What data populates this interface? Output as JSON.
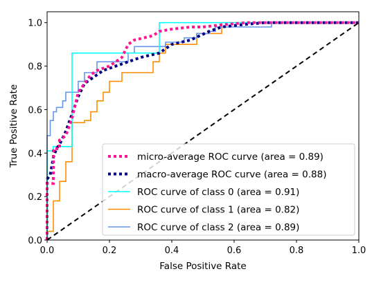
{
  "chart_data": {
    "type": "line",
    "title": "",
    "xlabel": "False Positive Rate",
    "ylabel": "True Positive Rate",
    "xlim": [
      0.0,
      1.0
    ],
    "ylim": [
      0.0,
      1.05
    ],
    "xticks": [
      "0.0",
      "0.2",
      "0.4",
      "0.6",
      "0.8",
      "1.0"
    ],
    "yticks": [
      "0.0",
      "0.2",
      "0.4",
      "0.6",
      "0.8",
      "1.0"
    ],
    "grid": false,
    "legend_position": "lower-right",
    "series": [
      {
        "name": "micro-average ROC curve (area = 0.89)",
        "style": "dotted",
        "color": "#ff1493",
        "x": [
          0,
          0,
          0.02,
          0.02,
          0.04,
          0.04,
          0.06,
          0.07,
          0.08,
          0.09,
          0.1,
          0.12,
          0.14,
          0.16,
          0.2,
          0.24,
          0.26,
          0.28,
          0.34,
          0.36,
          0.4,
          0.46,
          0.5,
          0.56,
          0.64,
          0.72,
          0.8,
          1.0
        ],
        "y": [
          0,
          0.26,
          0.26,
          0.42,
          0.42,
          0.46,
          0.48,
          0.52,
          0.56,
          0.62,
          0.68,
          0.72,
          0.76,
          0.78,
          0.8,
          0.84,
          0.9,
          0.92,
          0.94,
          0.96,
          0.97,
          0.98,
          0.98,
          0.99,
          1.0,
          1.0,
          1.0,
          1.0
        ]
      },
      {
        "name": "macro-average ROC curve (area = 0.88)",
        "style": "dotted",
        "color": "#000080",
        "x": [
          0,
          0,
          0.01,
          0.02,
          0.03,
          0.04,
          0.06,
          0.08,
          0.1,
          0.12,
          0.14,
          0.16,
          0.18,
          0.22,
          0.26,
          0.3,
          0.36,
          0.4,
          0.46,
          0.52,
          0.56,
          0.62,
          0.7,
          0.8,
          0.9,
          1.0
        ],
        "y": [
          0,
          0.28,
          0.3,
          0.38,
          0.42,
          0.44,
          0.5,
          0.58,
          0.66,
          0.72,
          0.74,
          0.76,
          0.78,
          0.8,
          0.82,
          0.84,
          0.86,
          0.9,
          0.92,
          0.96,
          0.98,
          0.99,
          1.0,
          1.0,
          1.0,
          1.0
        ]
      },
      {
        "name": "ROC curve of class 0 (area = 0.91)",
        "style": "solid",
        "color": "#00ffff",
        "x": [
          0,
          0,
          0.02,
          0.02,
          0.04,
          0.04,
          0.08,
          0.08,
          0.36,
          0.36,
          1.0
        ],
        "y": [
          0,
          0.41,
          0.41,
          0.43,
          0.43,
          0.43,
          0.43,
          0.86,
          0.86,
          1.0,
          1.0
        ]
      },
      {
        "name": "ROC curve of class 1 (area = 0.82)",
        "style": "solid",
        "color": "#ff8c00",
        "x": [
          0,
          0,
          0.02,
          0.02,
          0.04,
          0.04,
          0.06,
          0.06,
          0.08,
          0.08,
          0.12,
          0.12,
          0.14,
          0.14,
          0.16,
          0.16,
          0.18,
          0.18,
          0.2,
          0.2,
          0.24,
          0.24,
          0.28,
          0.28,
          0.34,
          0.34,
          0.36,
          0.36,
          0.38,
          0.38,
          0.48,
          0.48,
          0.56,
          0.56,
          1.0
        ],
        "y": [
          0,
          0.04,
          0.04,
          0.18,
          0.18,
          0.27,
          0.27,
          0.36,
          0.36,
          0.54,
          0.54,
          0.55,
          0.55,
          0.59,
          0.59,
          0.64,
          0.64,
          0.68,
          0.68,
          0.73,
          0.73,
          0.77,
          0.77,
          0.77,
          0.77,
          0.82,
          0.82,
          0.86,
          0.86,
          0.9,
          0.9,
          0.95,
          0.95,
          1.0,
          1.0
        ]
      },
      {
        "name": "ROC curve of class 2 (area = 0.89)",
        "style": "solid",
        "color": "#6495ed",
        "x": [
          0,
          0,
          0.01,
          0.01,
          0.02,
          0.02,
          0.03,
          0.03,
          0.05,
          0.05,
          0.06,
          0.06,
          0.08,
          0.08,
          0.1,
          0.1,
          0.12,
          0.12,
          0.14,
          0.14,
          0.16,
          0.16,
          0.26,
          0.26,
          0.28,
          0.28,
          0.38,
          0.38,
          0.44,
          0.44,
          0.48,
          0.48,
          0.52,
          0.52,
          0.54,
          0.54,
          0.72,
          0.72,
          1.0
        ],
        "y": [
          0,
          0.48,
          0.48,
          0.55,
          0.55,
          0.59,
          0.59,
          0.61,
          0.61,
          0.64,
          0.64,
          0.68,
          0.68,
          0.68,
          0.68,
          0.73,
          0.73,
          0.77,
          0.77,
          0.77,
          0.77,
          0.82,
          0.82,
          0.86,
          0.86,
          0.89,
          0.89,
          0.91,
          0.91,
          0.93,
          0.93,
          0.95,
          0.95,
          0.96,
          0.96,
          0.98,
          0.98,
          1.0,
          1.0
        ]
      },
      {
        "name": "",
        "style": "dashed",
        "color": "#000000",
        "x": [
          0,
          1
        ],
        "y": [
          0,
          1
        ]
      }
    ],
    "legend_entries": [
      0,
      1,
      2,
      3,
      4
    ]
  }
}
